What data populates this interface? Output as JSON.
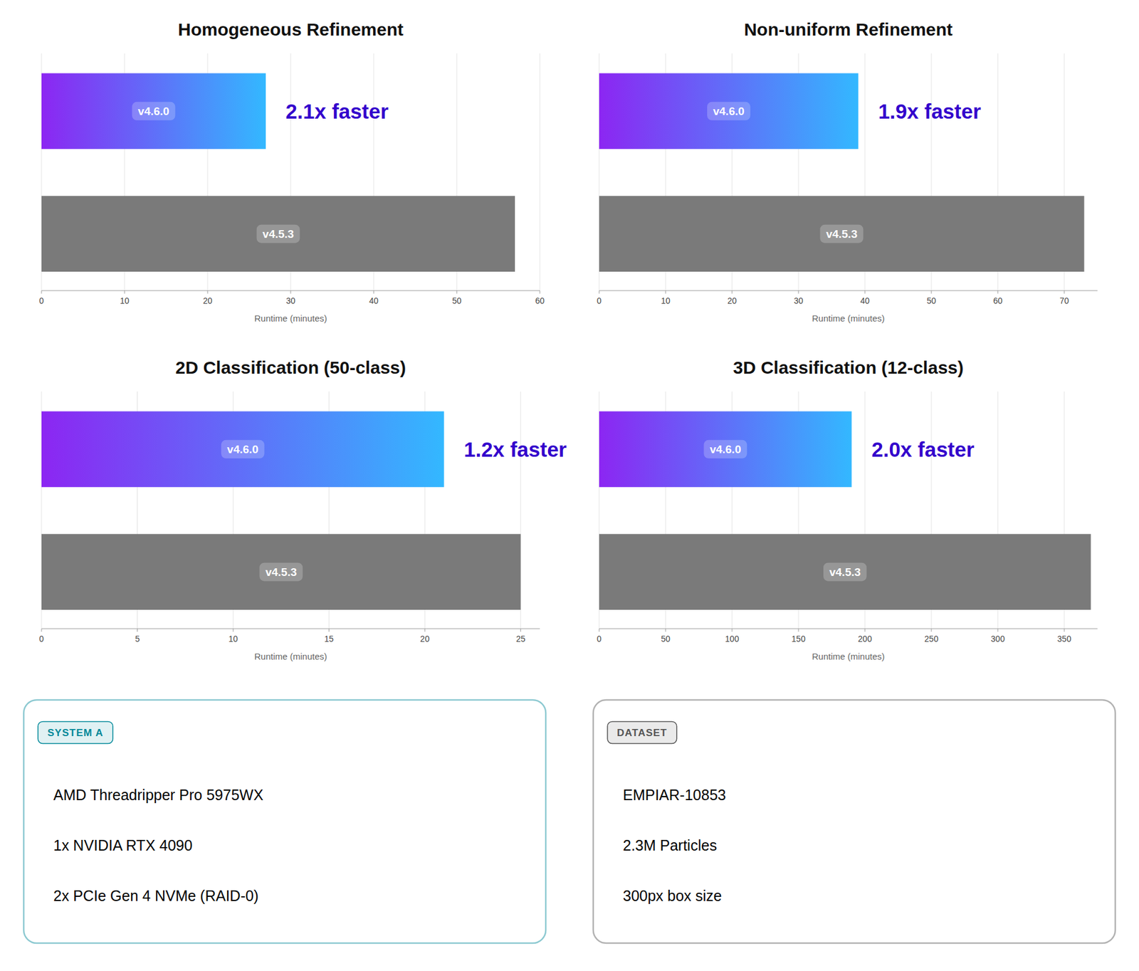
{
  "chart_data": [
    {
      "type": "bar",
      "orientation": "horizontal",
      "title": "Homogeneous Refinement",
      "categories": [
        "v4.6.0",
        "v4.5.3"
      ],
      "values": [
        27,
        57
      ],
      "colors": [
        "#8c26f2",
        "#7a7a7a"
      ],
      "xlim": [
        0,
        60
      ],
      "xticks": [
        0,
        10,
        20,
        30,
        40,
        50,
        60
      ],
      "x_label": "Runtime (minutes)",
      "grid": true,
      "tick_labels": "x",
      "annotations": [
        {
          "text": "2.1x faster",
          "color": "#3300cc"
        }
      ]
    },
    {
      "type": "bar",
      "orientation": "horizontal",
      "title": "Non-uniform Refinement",
      "categories": [
        "v4.6.0",
        "v4.5.3"
      ],
      "values": [
        39,
        73
      ],
      "colors": [
        "#8c26f2",
        "#7a7a7a"
      ],
      "xlim": [
        0,
        75
      ],
      "xticks": [
        0,
        10,
        20,
        30,
        40,
        50,
        60,
        70
      ],
      "x_label": "Runtime (minutes)",
      "grid": true,
      "tick_labels": "x",
      "annotations": [
        {
          "text": "1.9x faster",
          "color": "#3300cc"
        }
      ]
    },
    {
      "type": "bar",
      "orientation": "horizontal",
      "title": "2D Classification (50-class)",
      "categories": [
        "v4.6.0",
        "v4.5.3"
      ],
      "values": [
        21,
        25
      ],
      "colors": [
        "#8c26f2",
        "#7a7a7a"
      ],
      "xlim": [
        0,
        26
      ],
      "xticks": [
        0,
        5,
        10,
        15,
        20,
        25
      ],
      "x_label": "Runtime (minutes)",
      "grid": true,
      "tick_labels": "x",
      "annotations": [
        {
          "text": "1.2x faster",
          "color": "#3300cc"
        }
      ]
    },
    {
      "type": "bar",
      "orientation": "horizontal",
      "title": "3D Classification (12-class)",
      "categories": [
        "v4.6.0",
        "v4.5.3"
      ],
      "values": [
        190,
        370
      ],
      "colors": [
        "#8c26f2",
        "#7a7a7a"
      ],
      "xlim": [
        0,
        375
      ],
      "xticks": [
        0,
        50,
        100,
        150,
        200,
        250,
        300,
        350
      ],
      "x_label": "Runtime (minutes)",
      "grid": true,
      "tick_labels": "x",
      "annotations": [
        {
          "text": "2.0x faster",
          "color": "#3300cc"
        }
      ]
    },
    {
      "type": "text",
      "title": "SYSTEM A",
      "color": "#008899",
      "annotations": [
        "AMD Threadripper Pro 5975WX",
        "1x NVIDIA RTX 4090",
        "2x PCIe Gen 4 NVMe (RAID-0)"
      ]
    },
    {
      "type": "text",
      "title": "DATASET",
      "color": "#555555",
      "annotations": [
        "EMPIAR-10853",
        "2.3M Particles",
        "300px box size"
      ]
    }
  ]
}
